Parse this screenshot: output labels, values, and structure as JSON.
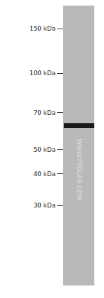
{
  "chart_data": {
    "type": "western_blot",
    "categories": [
      null
    ],
    "values": [
      62
    ],
    "color": "#1a1a1a",
    "log": "y",
    "ylim": [
      14.5,
      185
    ],
    "yticks": [
      {
        "value": 150,
        "label": "150 kDa"
      },
      {
        "value": 100,
        "label": "100 kDa"
      },
      {
        "value": 70,
        "label": "70 kDa"
      },
      {
        "value": 50,
        "label": "50 kDa"
      },
      {
        "value": 40,
        "label": "40 kDa"
      },
      {
        "value": 30,
        "label": "30 kDa"
      }
    ],
    "annotations": [
      "WWW.PTGLAB.COM"
    ],
    "grid": false,
    "tick_labels": "y"
  }
}
